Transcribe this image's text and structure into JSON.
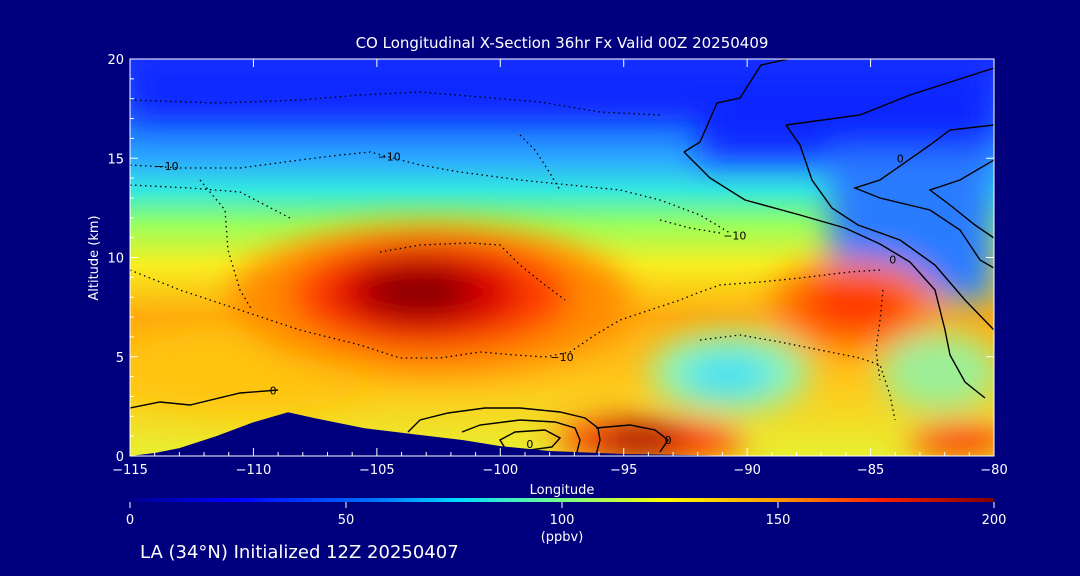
{
  "chart_data": {
    "type": "heatmap",
    "title": "CO Longitudinal X-Section 36hr  Fx Valid 00Z 20250409",
    "xlabel": "Longitude",
    "ylabel": "Altitude (km)",
    "xlim": [
      -115,
      -80
    ],
    "ylim": [
      0,
      20
    ],
    "x_ticks": [
      -115,
      -110,
      -105,
      -100,
      -95,
      -90,
      -85,
      -80
    ],
    "y_ticks": [
      0,
      5,
      10,
      15,
      20
    ],
    "x_tick_labels": [
      "−115",
      "−110",
      "−105",
      "−100",
      "−95",
      "−90",
      "−85",
      "−80"
    ],
    "y_tick_labels": [
      "0",
      "5",
      "10",
      "15",
      "20"
    ],
    "colorbar": {
      "min": 0,
      "max": 200,
      "ticks": [
        0,
        50,
        100,
        150,
        200
      ],
      "tick_labels": [
        "0",
        "50",
        "100",
        "150",
        "200"
      ],
      "units": "(ppbv)"
    },
    "contour_labels": [
      {
        "text": "−10",
        "lon": -113.5,
        "alt": 14.6
      },
      {
        "text": "−10",
        "lon": -104.5,
        "alt": 15.1
      },
      {
        "text": "−10",
        "lon": -90.5,
        "alt": 11.1
      },
      {
        "text": "−10",
        "lon": -97.5,
        "alt": 5.0
      },
      {
        "text": "0",
        "lon": -109.2,
        "alt": 3.3
      },
      {
        "text": "0",
        "lon": -98.8,
        "alt": 0.6
      },
      {
        "text": "0",
        "lon": -93.2,
        "alt": 0.8
      },
      {
        "text": "0",
        "lon": -84.1,
        "alt": 9.9
      },
      {
        "text": "0",
        "lon": -83.8,
        "alt": 15.0
      }
    ],
    "concentration_features": [
      {
        "feature": "upper-troposphere low",
        "lon_range": [
          -115,
          -80
        ],
        "alt_range": [
          15,
          20
        ],
        "value": 35
      },
      {
        "feature": "mid-troposphere maximum",
        "lon": -102.5,
        "alt": 8.2,
        "value": 200
      },
      {
        "feature": "secondary maximum",
        "lon": -85.5,
        "alt": 7.5,
        "value": 170
      },
      {
        "feature": "surface maximum",
        "lon": -93.5,
        "alt": 0.7,
        "value": 195
      },
      {
        "feature": "surface maximum east",
        "lon": -81,
        "alt": 0.8,
        "value": 175
      },
      {
        "feature": "mid-level minimum",
        "lon": -89,
        "alt": 4.0,
        "value": 90
      }
    ],
    "terrain_profile": [
      {
        "lon": -115,
        "alt": 0
      },
      {
        "lon": -114,
        "alt": 0.15
      },
      {
        "lon": -113,
        "alt": 0.4
      },
      {
        "lon": -111.5,
        "alt": 1.0
      },
      {
        "lon": -110,
        "alt": 1.7
      },
      {
        "lon": -108.6,
        "alt": 2.2
      },
      {
        "lon": -107.5,
        "alt": 1.9
      },
      {
        "lon": -105.5,
        "alt": 1.4
      },
      {
        "lon": -103.5,
        "alt": 1.1
      },
      {
        "lon": -101.5,
        "alt": 0.8
      },
      {
        "lon": -100,
        "alt": 0.5
      },
      {
        "lon": -98,
        "alt": 0.25
      },
      {
        "lon": -95,
        "alt": 0.1
      },
      {
        "lon": -90,
        "alt": 0
      },
      {
        "lon": -80,
        "alt": 0
      }
    ]
  },
  "footer_text": "LA (34°N) Initialized 12Z 20250407",
  "colors": {
    "background": "#00007f",
    "text": "#ffffff",
    "terrain": "#00007f",
    "contour": "#000000"
  }
}
